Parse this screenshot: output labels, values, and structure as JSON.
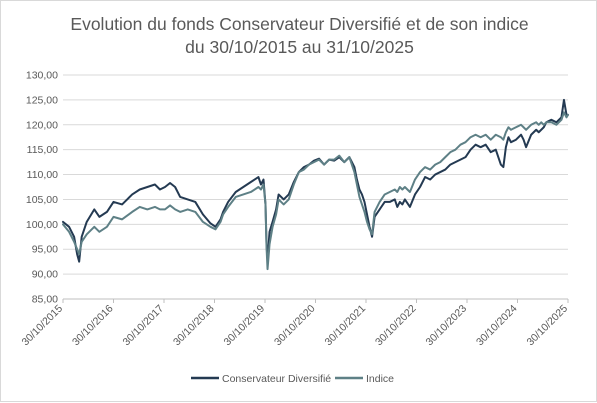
{
  "chart_data": {
    "type": "line",
    "title_line1": "Evolution du fonds Conservateur Diversifié et de son indice",
    "title_line2": "du 30/10/2015 au 31/10/2025",
    "xlabel": "",
    "ylabel": "",
    "ylim": [
      85,
      130
    ],
    "y_ticks": [
      "130,00",
      "125,00",
      "120,00",
      "115,00",
      "110,00",
      "105,00",
      "100,00",
      "95,00",
      "90,00",
      "85,00"
    ],
    "x_ticks": [
      "30/10/2015",
      "30/10/2016",
      "30/10/2017",
      "30/10/2018",
      "30/10/2019",
      "30/10/2020",
      "30/10/2021",
      "30/10/2022",
      "30/10/2023",
      "30/10/2024",
      "30/10/2025"
    ],
    "grid": "horizontal",
    "legend_position": "bottom",
    "series": [
      {
        "name": "Conservateur Diversifié",
        "color": "#243a52",
        "x": [
          2015.83,
          2015.95,
          2016.05,
          2016.11,
          2016.15,
          2016.2,
          2016.3,
          2016.45,
          2016.55,
          2016.7,
          2016.83,
          2017.0,
          2017.2,
          2017.35,
          2017.5,
          2017.65,
          2017.75,
          2017.85,
          2017.95,
          2018.05,
          2018.15,
          2018.3,
          2018.45,
          2018.6,
          2018.75,
          2018.85,
          2018.95,
          2019.0,
          2019.1,
          2019.25,
          2019.4,
          2019.55,
          2019.7,
          2019.75,
          2019.8,
          2019.84,
          2019.86,
          2019.88,
          2019.92,
          2019.98,
          2020.05,
          2020.1,
          2020.2,
          2020.3,
          2020.4,
          2020.5,
          2020.6,
          2020.7,
          2020.8,
          2020.9,
          2021.0,
          2021.1,
          2021.2,
          2021.3,
          2021.4,
          2021.5,
          2021.6,
          2021.65,
          2021.7,
          2021.75,
          2021.8,
          2021.85,
          2021.9,
          2021.95,
          2022.0,
          2022.1,
          2022.2,
          2022.3,
          2022.4,
          2022.45,
          2022.5,
          2022.55,
          2022.6,
          2022.7,
          2022.8,
          2022.9,
          2023.0,
          2023.1,
          2023.2,
          2023.3,
          2023.4,
          2023.5,
          2023.6,
          2023.7,
          2023.8,
          2023.9,
          2024.0,
          2024.1,
          2024.2,
          2024.3,
          2024.4,
          2024.5,
          2024.55,
          2024.6,
          2024.65,
          2024.7,
          2024.8,
          2024.9,
          2024.95,
          2025.0,
          2025.1,
          2025.2,
          2025.25,
          2025.3,
          2025.35,
          2025.4,
          2025.5,
          2025.6,
          2025.7,
          2025.75,
          2025.8,
          2025.83
        ],
        "values": [
          100.5,
          99.5,
          97.5,
          94.0,
          92.5,
          97.5,
          100.5,
          103.0,
          101.5,
          102.5,
          104.5,
          104.0,
          106.0,
          107.0,
          107.5,
          108.0,
          107.0,
          107.5,
          108.3,
          107.5,
          105.5,
          105.0,
          104.5,
          102.0,
          100.2,
          99.5,
          101.0,
          102.5,
          104.5,
          106.5,
          107.5,
          108.5,
          109.5,
          108.0,
          109.0,
          104.0,
          96.0,
          93.0,
          98.5,
          100.5,
          103.0,
          106.0,
          105.0,
          106.0,
          108.5,
          110.5,
          111.5,
          112.0,
          112.8,
          113.2,
          112.0,
          113.0,
          112.8,
          113.5,
          112.5,
          113.5,
          111.5,
          109.0,
          107.0,
          106.0,
          104.5,
          102.0,
          99.5,
          97.5,
          101.5,
          103.0,
          104.5,
          104.5,
          105.0,
          103.5,
          104.5,
          104.0,
          105.0,
          103.5,
          106.0,
          107.5,
          109.5,
          109.0,
          110.0,
          110.5,
          111.0,
          112.0,
          112.5,
          113.0,
          113.5,
          115.0,
          116.0,
          115.5,
          116.0,
          114.5,
          115.0,
          112.0,
          111.5,
          115.5,
          117.5,
          116.5,
          117.0,
          118.0,
          117.0,
          115.5,
          118.0,
          119.0,
          118.5,
          119.0,
          119.5,
          120.5,
          121.0,
          120.5,
          121.5,
          125.0,
          122.0,
          122.0
        ]
      },
      {
        "name": "Indice",
        "color": "#5e8086",
        "x": [
          2015.83,
          2015.95,
          2016.05,
          2016.11,
          2016.15,
          2016.2,
          2016.3,
          2016.45,
          2016.55,
          2016.7,
          2016.83,
          2017.0,
          2017.2,
          2017.35,
          2017.5,
          2017.65,
          2017.75,
          2017.85,
          2017.95,
          2018.05,
          2018.15,
          2018.3,
          2018.45,
          2018.6,
          2018.75,
          2018.85,
          2018.95,
          2019.0,
          2019.1,
          2019.25,
          2019.4,
          2019.55,
          2019.7,
          2019.75,
          2019.8,
          2019.84,
          2019.86,
          2019.88,
          2019.92,
          2019.98,
          2020.05,
          2020.1,
          2020.2,
          2020.3,
          2020.4,
          2020.5,
          2020.6,
          2020.7,
          2020.8,
          2020.9,
          2021.0,
          2021.1,
          2021.2,
          2021.3,
          2021.4,
          2021.5,
          2021.6,
          2021.65,
          2021.7,
          2021.75,
          2021.8,
          2021.85,
          2021.9,
          2021.95,
          2022.0,
          2022.1,
          2022.2,
          2022.3,
          2022.4,
          2022.45,
          2022.5,
          2022.55,
          2022.6,
          2022.7,
          2022.8,
          2022.9,
          2023.0,
          2023.1,
          2023.2,
          2023.3,
          2023.4,
          2023.5,
          2023.6,
          2023.7,
          2023.8,
          2023.9,
          2024.0,
          2024.1,
          2024.2,
          2024.3,
          2024.4,
          2024.5,
          2024.55,
          2024.6,
          2024.65,
          2024.7,
          2024.8,
          2024.9,
          2024.95,
          2025.0,
          2025.1,
          2025.2,
          2025.25,
          2025.3,
          2025.35,
          2025.4,
          2025.5,
          2025.6,
          2025.7,
          2025.75,
          2025.8,
          2025.83
        ],
        "values": [
          100.0,
          98.5,
          96.5,
          95.0,
          94.0,
          96.5,
          98.0,
          99.5,
          98.5,
          99.5,
          101.5,
          101.0,
          102.5,
          103.5,
          103.0,
          103.5,
          103.0,
          103.0,
          103.8,
          103.0,
          102.5,
          103.0,
          102.5,
          100.5,
          99.5,
          99.0,
          100.5,
          102.0,
          103.5,
          105.5,
          106.0,
          106.5,
          107.5,
          107.0,
          108.0,
          104.0,
          95.5,
          91.0,
          96.0,
          99.5,
          102.0,
          105.0,
          104.0,
          105.0,
          108.0,
          110.5,
          111.0,
          112.0,
          112.5,
          113.0,
          112.0,
          113.0,
          113.0,
          113.8,
          112.5,
          113.5,
          110.5,
          108.0,
          105.5,
          104.0,
          102.5,
          100.5,
          99.0,
          98.0,
          102.5,
          104.5,
          106.0,
          106.5,
          107.0,
          106.5,
          107.5,
          107.0,
          107.5,
          106.5,
          109.0,
          110.5,
          111.5,
          111.0,
          112.0,
          112.5,
          113.5,
          114.5,
          115.0,
          116.0,
          116.5,
          117.5,
          118.0,
          117.5,
          118.0,
          117.0,
          118.0,
          117.5,
          117.0,
          118.5,
          119.5,
          119.0,
          119.5,
          120.0,
          119.5,
          119.0,
          120.0,
          120.5,
          120.0,
          120.5,
          120.0,
          120.5,
          120.5,
          120.0,
          121.0,
          122.5,
          121.5,
          122.0
        ]
      }
    ]
  }
}
